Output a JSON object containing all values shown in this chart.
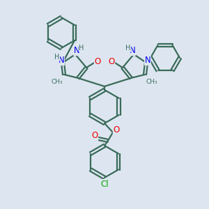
{
  "background_color": "#dde6f0",
  "atom_colors": {
    "C": "#3a6b5a",
    "N": "#0000ee",
    "O": "#ee0000",
    "Cl": "#00aa00",
    "H": "#3a6b5a"
  },
  "bond_color": "#3a6b5a",
  "line_width": 1.6,
  "font_size": 8.5,
  "font_size_small": 7.0
}
